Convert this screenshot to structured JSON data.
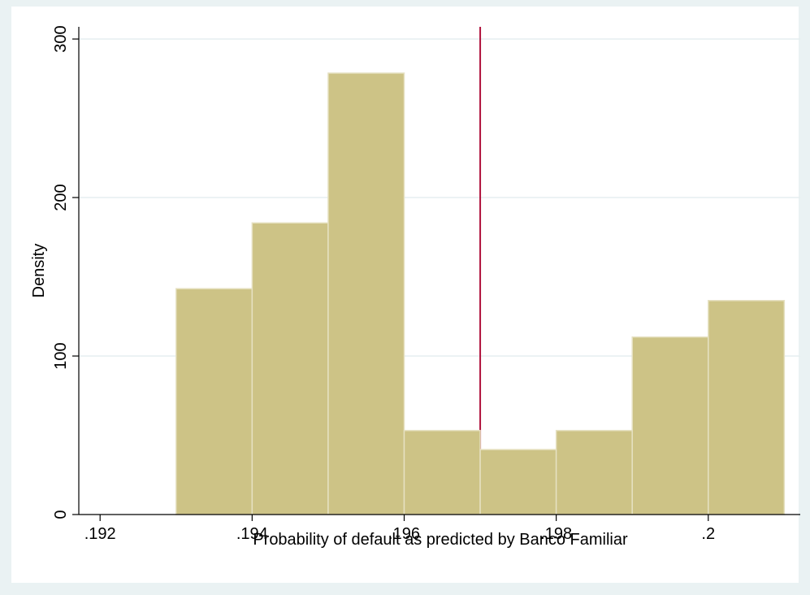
{
  "chart_data": {
    "type": "histogram",
    "xlabel": "Probability of default as predicted by Banco Familiar",
    "ylabel": "Density",
    "bins": [
      0.193,
      0.194,
      0.195,
      0.196,
      0.197,
      0.198,
      0.199,
      0.2,
      0.201
    ],
    "counts": [
      142.5,
      184,
      278.5,
      53,
      41,
      53,
      112,
      135
    ],
    "color": "#cdc386",
    "xline": 0.197,
    "xline_color": "#b0123c",
    "xlim": [
      0.19172,
      0.20121
    ],
    "ylim": [
      0,
      307.7
    ],
    "xticks": [
      {
        "value": 0.192,
        "label": ".192"
      },
      {
        "value": 0.194,
        "label": ".194"
      },
      {
        "value": 0.196,
        "label": ".196"
      },
      {
        "value": 0.198,
        "label": ".198"
      },
      {
        "value": 0.2,
        "label": ".2"
      }
    ],
    "yticks": [
      0,
      100,
      200,
      300
    ],
    "grid": true
  }
}
